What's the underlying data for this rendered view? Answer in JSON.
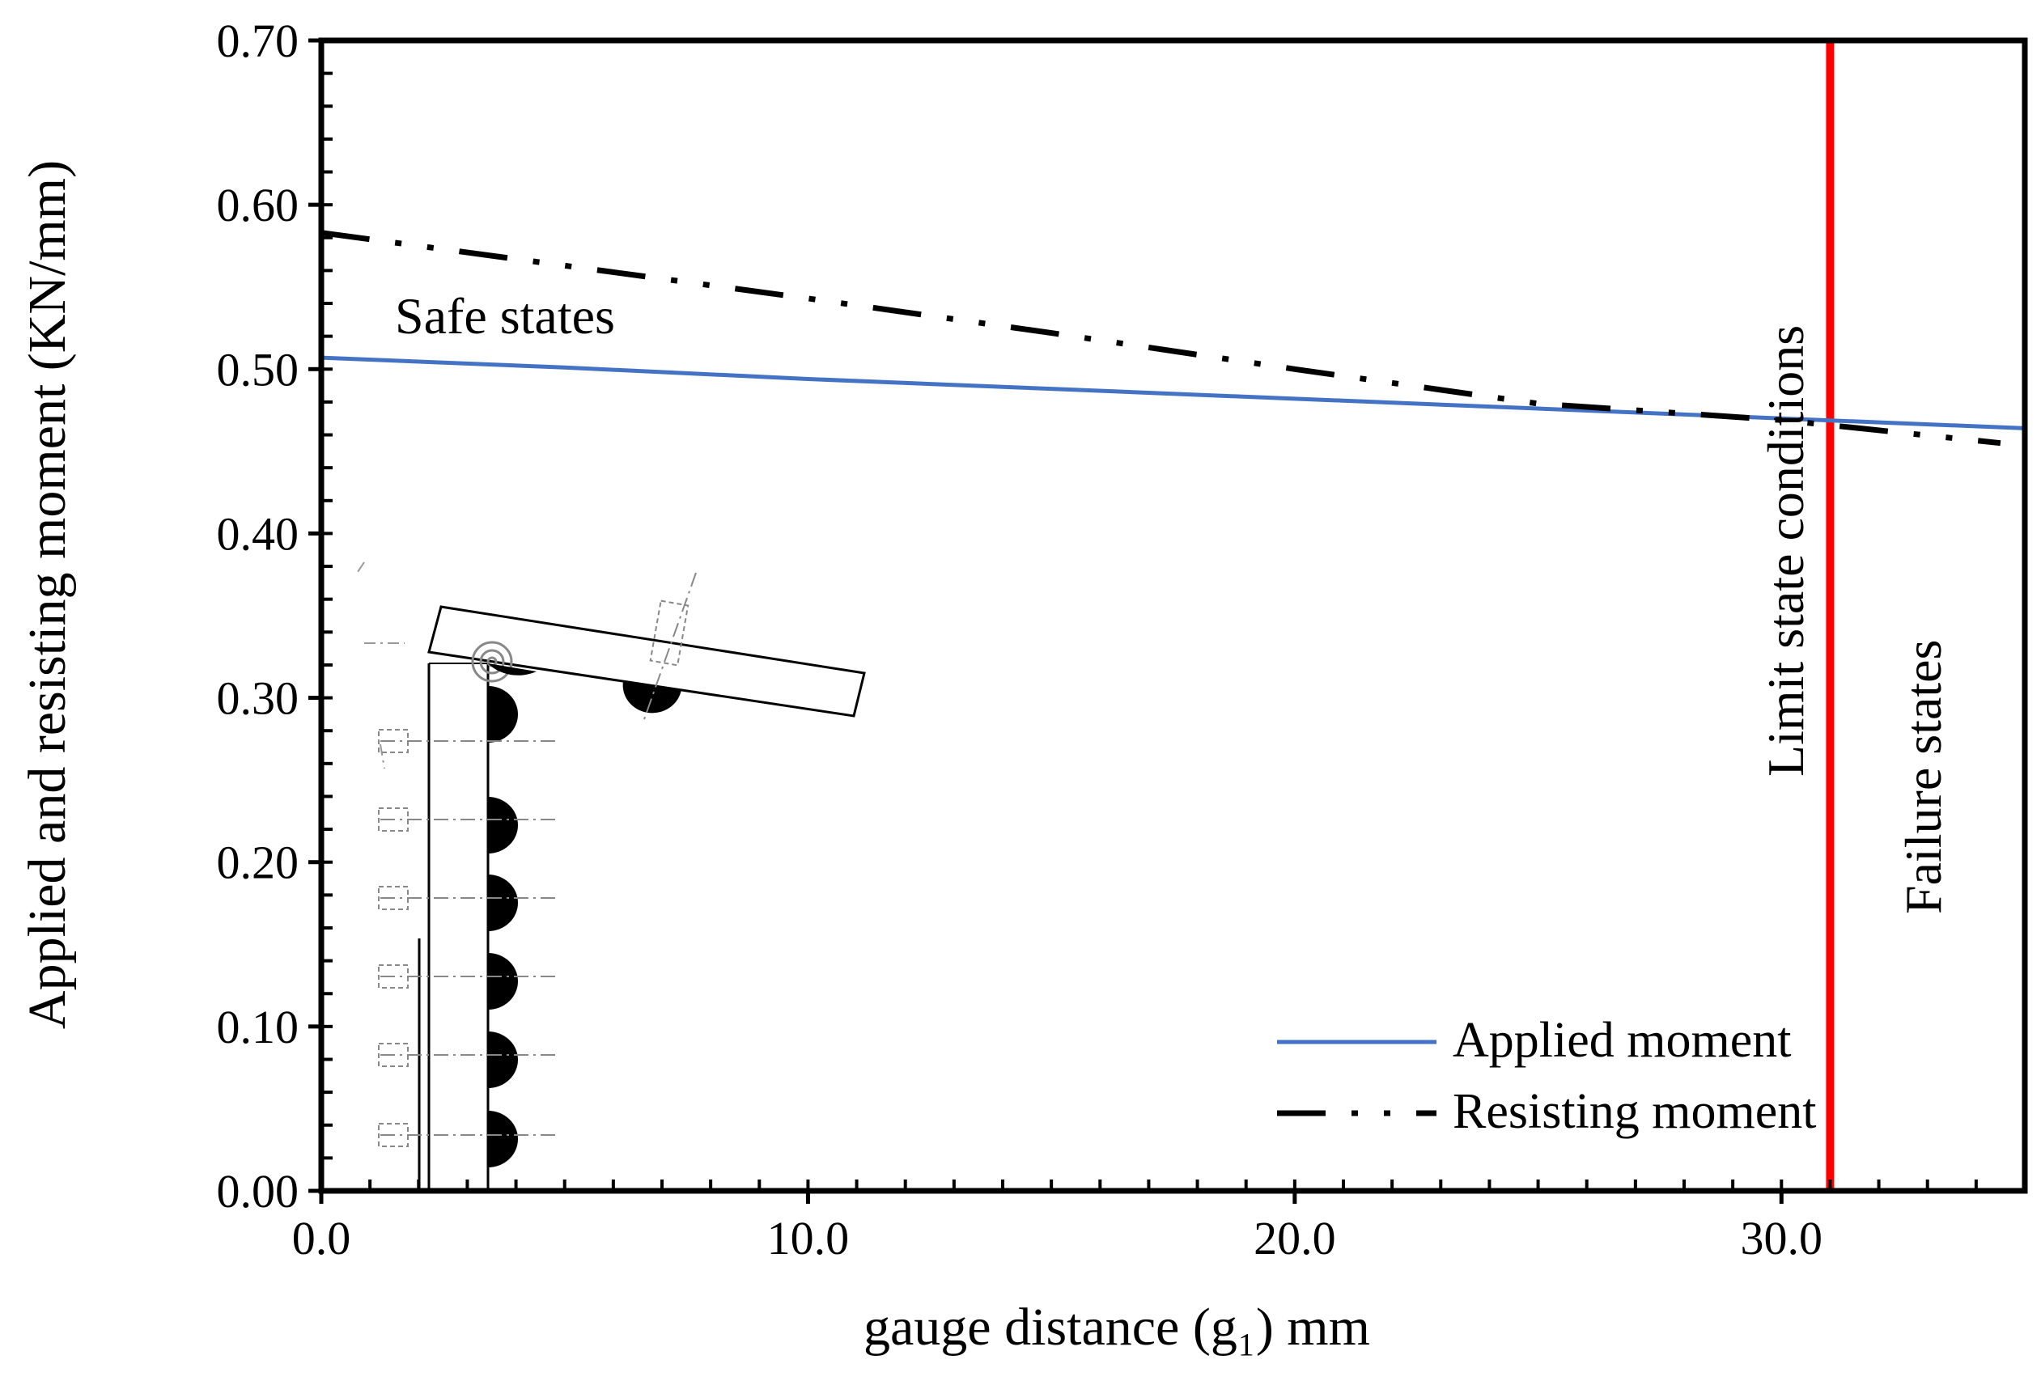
{
  "chart_data": {
    "type": "line",
    "title": "",
    "xlabel": "gauge distance (g₁) mm",
    "ylabel": "Applied and resisting moment (KN/mm)",
    "xlim": [
      0,
      35
    ],
    "ylim": [
      0,
      0.7
    ],
    "x_ticks": [
      "0.0",
      "10.0",
      "20.0",
      "30.0"
    ],
    "x_tick_values": [
      0,
      10,
      20,
      30
    ],
    "y_ticks": [
      "0.00",
      "0.10",
      "0.20",
      "0.30",
      "0.40",
      "0.50",
      "0.60",
      "0.70"
    ],
    "y_tick_values": [
      0,
      0.1,
      0.2,
      0.3,
      0.4,
      0.5,
      0.6,
      0.7
    ],
    "grid": false,
    "legend_position": "bottom-right",
    "series": [
      {
        "name": "Applied moment",
        "color": "#4472c4",
        "style": "solid",
        "x": [
          0,
          5,
          10,
          15,
          20,
          25,
          30,
          35
        ],
        "y": [
          0.507,
          0.501,
          0.494,
          0.488,
          0.482,
          0.476,
          0.47,
          0.464
        ]
      },
      {
        "name": "Resisting moment",
        "color": "#000000",
        "style": "dash-dot-dot",
        "x": [
          0,
          5,
          10,
          15,
          20,
          25,
          30,
          34.5
        ],
        "y": [
          0.583,
          0.563,
          0.543,
          0.522,
          0.5,
          0.479,
          0.469,
          0.455
        ]
      }
    ],
    "reference_line": {
      "x": 31.0,
      "color": "#ff0000"
    },
    "annotations": {
      "safe": "Safe states",
      "limit": "Limit state conditions",
      "failure": "Failure states"
    }
  }
}
